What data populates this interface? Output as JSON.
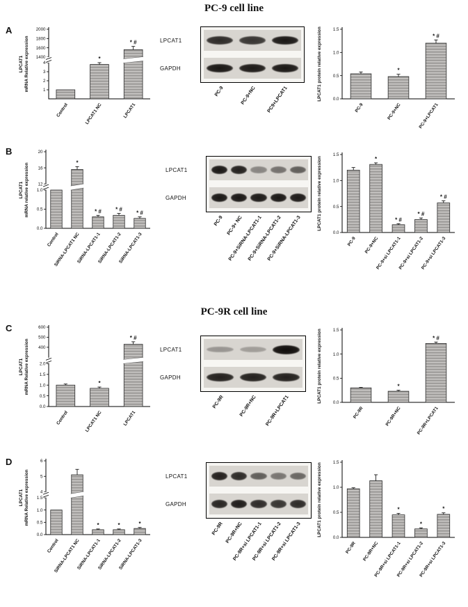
{
  "figure": {
    "title_top": "PC-9 cell line",
    "title_middle": "PC-9R cell line"
  },
  "panels": {
    "A": {
      "label": "A",
      "mrna_chart": {
        "type": "bar",
        "ylabel_lines": [
          "LPCAT1",
          "mRNA Relative expression"
        ],
        "categories": [
          "Control",
          "LPCAT1 NC",
          "LPCAT1"
        ],
        "values": [
          1.0,
          3.8,
          1560
        ],
        "errors": [
          0,
          0.25,
          70
        ],
        "annotations": [
          "",
          "*",
          "* #"
        ],
        "axis": {
          "break": true,
          "gap_frac": 0.08,
          "segments": [
            {
              "min": 0,
              "max": 4,
              "frac": 0.52,
              "ticks": [
                {
                  "v": 1,
                  "t": "1"
                },
                {
                  "v": 2,
                  "t": "2"
                },
                {
                  "v": 3,
                  "t": "3"
                },
                {
                  "v": 4,
                  "t": "4"
                }
              ]
            },
            {
              "min": 1400,
              "max": 2000,
              "frac": 0.4,
              "ticks": [
                {
                  "v": 1400,
                  "t": "1400"
                },
                {
                  "v": 1600,
                  "t": "1600"
                },
                {
                  "v": 1800,
                  "t": "1800"
                },
                {
                  "v": 2000,
                  "t": "2000"
                }
              ]
            }
          ]
        }
      },
      "blot": {
        "rows": [
          {
            "label": "LPCAT1",
            "bands": [
              0.85,
              0.8,
              0.95
            ]
          },
          {
            "label": "GAPDH",
            "bands": [
              0.95,
              0.93,
              0.95
            ]
          }
        ],
        "lanes": [
          "PC-9",
          "PC-9+NC",
          "PC9+LPCAT1"
        ]
      },
      "protein_chart": {
        "type": "bar",
        "ylabel_lines": [
          "LPCAT1 protein relative expression"
        ],
        "categories": [
          "PC-9",
          "PC-9+NC",
          "PC-9+LPCAT1"
        ],
        "values": [
          0.54,
          0.48,
          1.2
        ],
        "errors": [
          0.04,
          0.05,
          0.07
        ],
        "annotations": [
          "",
          "*",
          "* #"
        ],
        "axis": {
          "break": false,
          "segments": [
            {
              "min": 0,
              "max": 1.5,
              "frac": 1,
              "ticks": [
                {
                  "v": 0,
                  "t": "0.0"
                },
                {
                  "v": 0.5,
                  "t": "0.5"
                },
                {
                  "v": 1,
                  "t": "1.0"
                },
                {
                  "v": 1.5,
                  "t": "1.5"
                }
              ]
            }
          ]
        }
      }
    },
    "B": {
      "label": "B",
      "mrna_chart": {
        "type": "bar",
        "ylabel_lines": [
          "LPCAT1",
          "mRNA relative expression"
        ],
        "categories": [
          "Control",
          "SiRNA-LPCAT1 NC",
          "SiRNA-LPCAT1-1",
          "SiRNA-LPCAT1-2",
          "SiRNA-LPCAT1-3"
        ],
        "values": [
          1.0,
          15.6,
          0.3,
          0.34,
          0.26
        ],
        "errors": [
          0,
          0.7,
          0.04,
          0.05,
          0.04
        ],
        "annotations": [
          "",
          "*",
          "* #",
          "* #",
          "* #"
        ],
        "axis": {
          "break": true,
          "gap_frac": 0.08,
          "segments": [
            {
              "min": 0,
              "max": 1.0,
              "frac": 0.5,
              "ticks": [
                {
                  "v": 0,
                  "t": "0.0"
                },
                {
                  "v": 0.5,
                  "t": "0.5"
                },
                {
                  "v": 1,
                  "t": "1.0"
                }
              ]
            },
            {
              "min": 12,
              "max": 20,
              "frac": 0.42,
              "ticks": [
                {
                  "v": 12,
                  "t": "12"
                },
                {
                  "v": 16,
                  "t": "16"
                },
                {
                  "v": 20,
                  "t": "20"
                }
              ]
            }
          ]
        }
      },
      "blot": {
        "rows": [
          {
            "label": "LPCAT1",
            "bands": [
              0.95,
              0.9,
              0.4,
              0.5,
              0.6
            ]
          },
          {
            "label": "GAPDH",
            "bands": [
              0.95,
              0.95,
              0.93,
              0.95,
              0.93
            ]
          }
        ],
        "lanes": [
          "PC-9",
          "PC-9+ NC",
          "PC-9+SiRNA-LPCAT1-1",
          "PC-9+SiRNA-LPCAT1-2",
          "PC-9+SiRNA-LPCAT1-3"
        ]
      },
      "protein_chart": {
        "type": "bar",
        "ylabel_lines": [
          "LPCAT1 protein relative expression"
        ],
        "categories": [
          "PC-9",
          "PC-9+NC",
          "PC-9+si LPCAT1-1",
          "PC-9+si LPCAT1-2",
          "PC-9+si LPCAT1-3"
        ],
        "values": [
          1.2,
          1.31,
          0.15,
          0.25,
          0.57
        ],
        "errors": [
          0.05,
          0.03,
          0.02,
          0.03,
          0.04
        ],
        "annotations": [
          "",
          "*",
          "* #",
          "* #",
          "* #"
        ],
        "axis": {
          "break": false,
          "segments": [
            {
              "min": 0,
              "max": 1.5,
              "frac": 1,
              "ticks": [
                {
                  "v": 0,
                  "t": "0.0"
                },
                {
                  "v": 0.5,
                  "t": "0.5"
                },
                {
                  "v": 1,
                  "t": "1.0"
                },
                {
                  "v": 1.5,
                  "t": "1.5"
                }
              ]
            }
          ]
        }
      }
    },
    "C": {
      "label": "C",
      "mrna_chart": {
        "type": "bar",
        "ylabel_lines": [
          "LPCAT1",
          "mRNA Relative expression"
        ],
        "categories": [
          "Control",
          "LPCAT1 NC",
          "LPCAT1"
        ],
        "values": [
          1.0,
          0.85,
          430
        ],
        "errors": [
          0.05,
          0.06,
          25
        ],
        "annotations": [
          "",
          "*",
          "* #"
        ],
        "axis": {
          "break": true,
          "gap_frac": 0.08,
          "segments": [
            {
              "min": 0,
              "max": 2.0,
              "frac": 0.54,
              "ticks": [
                {
                  "v": 0,
                  "t": "0.0"
                },
                {
                  "v": 0.5,
                  "t": "0.5"
                },
                {
                  "v": 1,
                  "t": "1.0"
                },
                {
                  "v": 1.5,
                  "t": "1.5"
                },
                {
                  "v": 2,
                  "t": "2.0"
                }
              ]
            },
            {
              "min": 300,
              "max": 600,
              "frac": 0.38,
              "ticks": [
                {
                  "v": 400,
                  "t": "400"
                },
                {
                  "v": 500,
                  "t": "500"
                },
                {
                  "v": 600,
                  "t": "600"
                }
              ]
            }
          ]
        }
      },
      "blot": {
        "rows": [
          {
            "label": "LPCAT1",
            "bands": [
              0.32,
              0.28,
              1.0
            ]
          },
          {
            "label": "GAPDH",
            "bands": [
              0.9,
              0.9,
              0.9
            ]
          }
        ],
        "lanes": [
          "PC-9R",
          "PC-9R+NC",
          "PC-9R+LPCAT1"
        ]
      },
      "protein_chart": {
        "type": "bar",
        "ylabel_lines": [
          "LPCAT1 protein relative expression"
        ],
        "categories": [
          "PC-9R",
          "PC-9R+NC",
          "PC-9R+LPCAT1"
        ],
        "values": [
          0.3,
          0.23,
          1.22
        ],
        "errors": [
          0.01,
          0.02,
          0.03
        ],
        "annotations": [
          "",
          "*",
          "* #"
        ],
        "axis": {
          "break": false,
          "segments": [
            {
              "min": 0,
              "max": 1.5,
              "frac": 1,
              "ticks": [
                {
                  "v": 0,
                  "t": "0.0"
                },
                {
                  "v": 0.5,
                  "t": "0.5"
                },
                {
                  "v": 1,
                  "t": "1.0"
                },
                {
                  "v": 1.5,
                  "t": "1.5"
                }
              ]
            }
          ]
        }
      }
    },
    "D": {
      "label": "D",
      "mrna_chart": {
        "type": "bar",
        "ylabel_lines": [
          "LPCAT1",
          "mRNA Relative expression"
        ],
        "categories": [
          "Control",
          "SiRNA-LPCAT1 NC",
          "SiRNA-LPCAT1-1",
          "SiRNA-LPCAT1-2",
          "SiRNA-LPCAT1-3"
        ],
        "values": [
          1.0,
          5.1,
          0.2,
          0.2,
          0.25
        ],
        "errors": [
          0,
          0.35,
          0.03,
          0.03,
          0.04
        ],
        "annotations": [
          "",
          "",
          "*",
          "*",
          "*"
        ],
        "axis": {
          "break": true,
          "gap_frac": 0.08,
          "segments": [
            {
              "min": 0,
              "max": 1.5,
              "frac": 0.5,
              "ticks": [
                {
                  "v": 0,
                  "t": "0.0"
                },
                {
                  "v": 0.5,
                  "t": "0.5"
                },
                {
                  "v": 1,
                  "t": "1.0"
                },
                {
                  "v": 1.5,
                  "t": "1.5"
                }
              ]
            },
            {
              "min": 4,
              "max": 6,
              "frac": 0.42,
              "ticks": [
                {
                  "v": 4,
                  "t": "4"
                },
                {
                  "v": 5,
                  "t": "5"
                },
                {
                  "v": 6,
                  "t": "6"
                }
              ]
            }
          ]
        }
      },
      "blot": {
        "rows": [
          {
            "label": "LPCAT1",
            "bands": [
              0.9,
              0.85,
              0.6,
              0.48,
              0.55
            ]
          },
          {
            "label": "GAPDH",
            "bands": [
              0.88,
              0.92,
              0.85,
              0.8,
              0.85
            ]
          }
        ],
        "lanes": [
          "PC-9R",
          "PC-9R+NC",
          "PC-9R+si LPCAT1-1",
          "PC-9R+si LPCAT1-2",
          "PC-9R+si LPCAT1-3"
        ]
      },
      "protein_chart": {
        "type": "bar",
        "ylabel_lines": [
          "LPCAT1 protein relative expression"
        ],
        "categories": [
          "PC-9R",
          "PC-9R+NC",
          "PC-9R+si LPCAT1-1",
          "PC-9R+si LPCAT1-2",
          "PC-9R+si LPCAT1-3"
        ],
        "values": [
          0.97,
          1.13,
          0.45,
          0.17,
          0.46
        ],
        "errors": [
          0.02,
          0.12,
          0.03,
          0.02,
          0.03
        ],
        "annotations": [
          "",
          "",
          "*",
          "*",
          "*"
        ],
        "axis": {
          "break": false,
          "segments": [
            {
              "min": 0,
              "max": 1.5,
              "frac": 1,
              "ticks": [
                {
                  "v": 0,
                  "t": "0.0"
                },
                {
                  "v": 0.5,
                  "t": "0.5"
                },
                {
                  "v": 1,
                  "t": "1.0"
                },
                {
                  "v": 1.5,
                  "t": "1.5"
                }
              ]
            }
          ]
        }
      }
    }
  }
}
